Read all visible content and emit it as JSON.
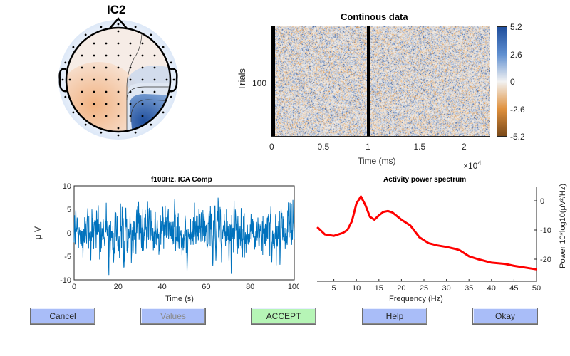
{
  "topoplot": {
    "title": "IC2"
  },
  "image_panel": {
    "title": "Continous data",
    "ylabel": "Trials",
    "ytick": "100",
    "xlabel": "Time (ms)",
    "xticks": [
      "0",
      "0.5",
      "1",
      "1.5",
      "2"
    ],
    "x_exponent": "×10",
    "x_exponent_power": "4",
    "colorbar_ticks": [
      "5.2",
      "2.6",
      "0",
      "-2.6",
      "-5.2"
    ],
    "colormap": [
      "#1f4e9c",
      "#ffffff",
      "#7a4a1a"
    ]
  },
  "chart_data": [
    {
      "type": "line",
      "title": "f100Hz. ICA Comp",
      "xlabel": "Time (s)",
      "ylabel": "μ V",
      "xlim": [
        0,
        100
      ],
      "ylim": [
        -10,
        10
      ],
      "xticks": [
        "0",
        "20",
        "40",
        "60",
        "80",
        "100"
      ],
      "yticks": [
        "10",
        "5",
        "0",
        "-5",
        "-10"
      ],
      "color": "#0072bd",
      "grid": false
    },
    {
      "type": "line",
      "title": "Activity power spectrum",
      "xlabel": "Frequency (Hz)",
      "ylabel": "Power 10*log10(μV²/Hz)",
      "xlim": [
        1.3,
        50
      ],
      "ylim": [
        -27,
        5
      ],
      "xticks": [
        "5",
        "10",
        "15",
        "20",
        "25",
        "30",
        "35",
        "40",
        "45",
        "50"
      ],
      "yticks": [
        "0",
        "-10",
        "-20"
      ],
      "color": "#ff0000",
      "grid": false,
      "x": [
        1.3,
        3,
        5,
        7,
        8,
        9,
        10,
        11,
        12,
        13,
        14,
        15,
        16,
        17,
        18,
        20,
        22,
        24,
        26,
        28,
        30,
        32,
        33,
        35,
        37,
        40,
        43,
        45,
        48,
        50
      ],
      "y": [
        -9,
        -11.5,
        -12,
        -11,
        -10,
        -7,
        -1,
        1.5,
        -1.5,
        -5.5,
        -6.5,
        -5,
        -3.8,
        -3.5,
        -4,
        -6.5,
        -8.5,
        -12.5,
        -14.5,
        -15.3,
        -15.8,
        -16.5,
        -17,
        -19,
        -20,
        -21.2,
        -21.6,
        -22.3,
        -23,
        -23.5
      ]
    }
  ],
  "buttons": {
    "cancel": "Cancel",
    "values": "Values",
    "accept": "ACCEPT",
    "help": "Help",
    "okay": "Okay"
  },
  "colors": {
    "button_blue": "#a9bdf8",
    "button_green": "#b6f5b6",
    "disabled_text": "#8a8a8a"
  }
}
